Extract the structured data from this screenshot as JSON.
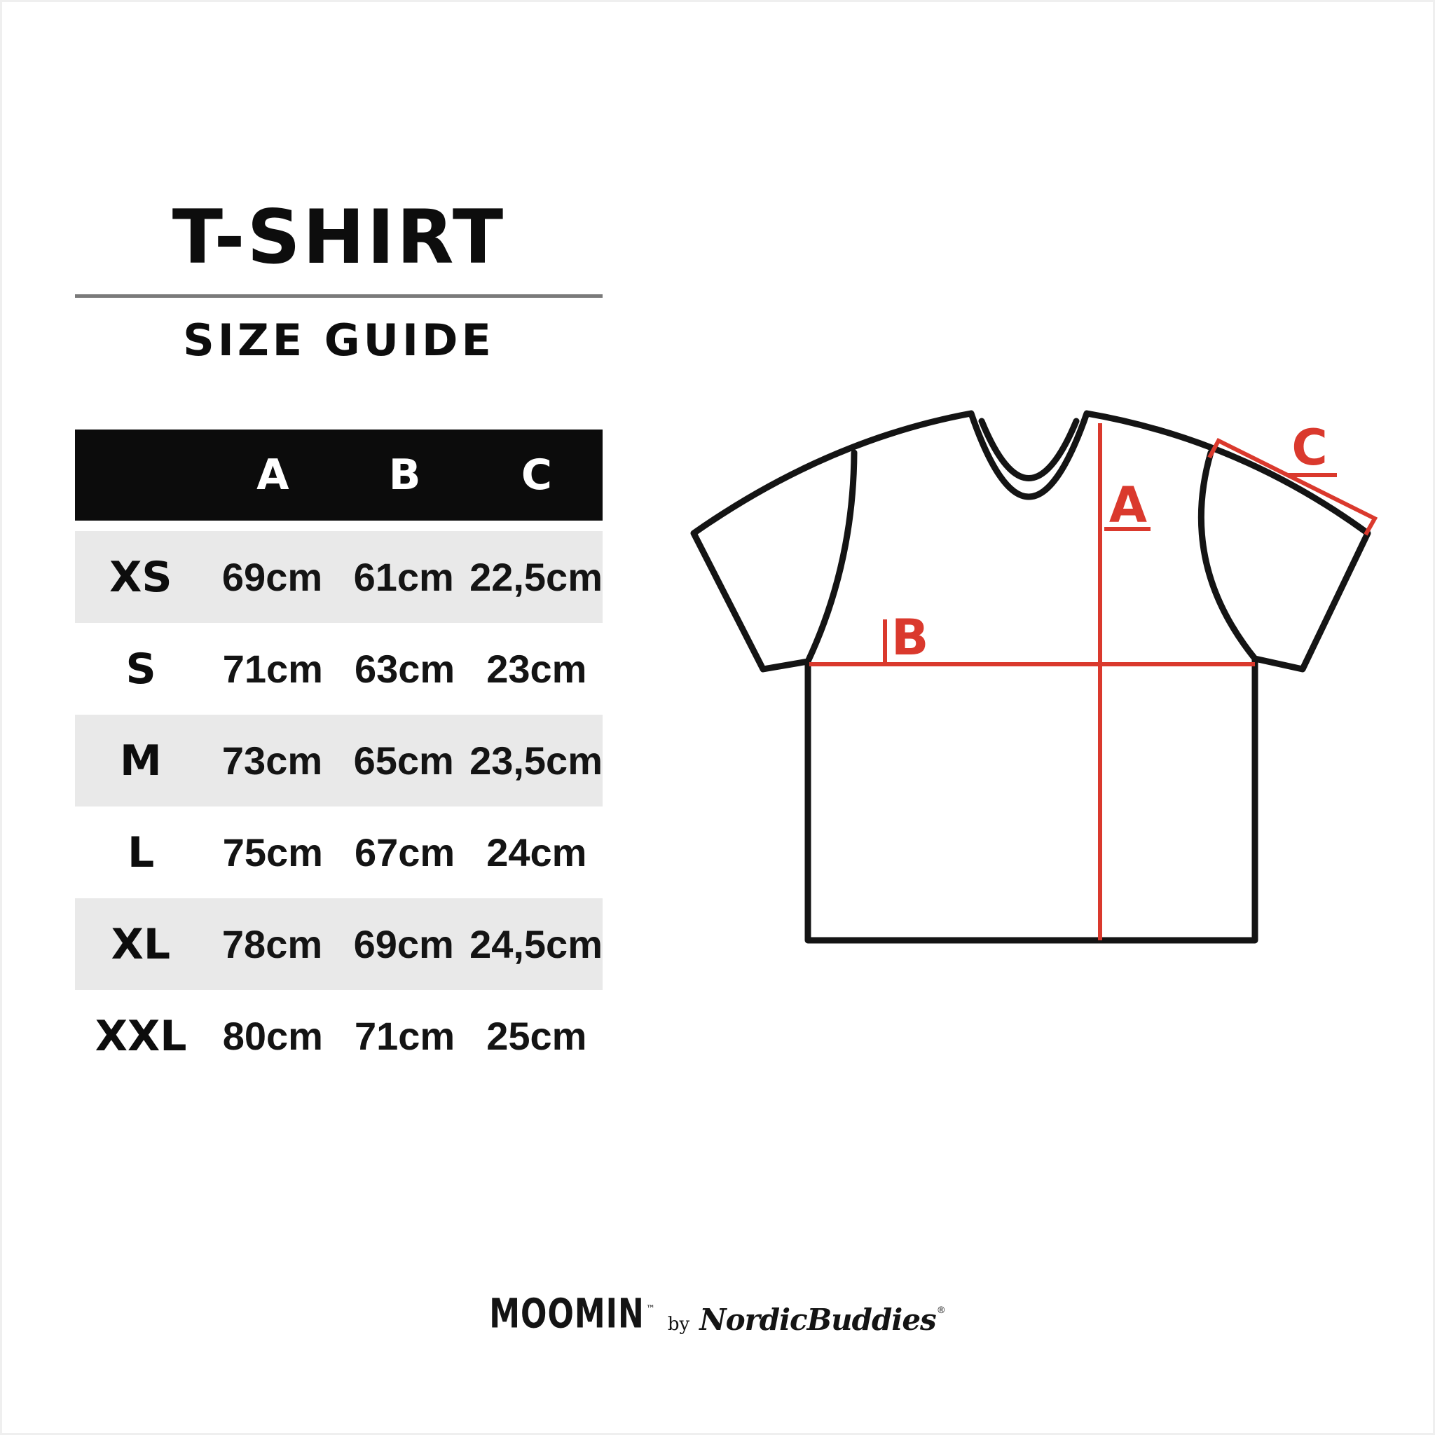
{
  "title": {
    "line1": "T-SHIRT",
    "line2": "SIZE GUIDE"
  },
  "table": {
    "columns": [
      "A",
      "B",
      "C"
    ],
    "rows": [
      {
        "size": "XS",
        "a": "69cm",
        "b": "61cm",
        "c": "22,5cm"
      },
      {
        "size": "S",
        "a": "71cm",
        "b": "63cm",
        "c": "23cm"
      },
      {
        "size": "M",
        "a": "73cm",
        "b": "65cm",
        "c": "23,5cm"
      },
      {
        "size": "L",
        "a": "75cm",
        "b": "67cm",
        "c": "24cm"
      },
      {
        "size": "XL",
        "a": "78cm",
        "b": "69cm",
        "c": "24,5cm"
      },
      {
        "size": "XXL",
        "a": "80cm",
        "b": "71cm",
        "c": "25cm"
      }
    ],
    "header_bg": "#0c0c0c",
    "alt_row_bg": "#e9e9e9"
  },
  "diagram": {
    "label_a": "A",
    "label_b": "B",
    "label_c": "C",
    "accent_color": "#da392d",
    "outline_color": "#141414"
  },
  "footer": {
    "brand": "MOOMIN",
    "brand_mark": "™",
    "connector": "by",
    "partner": "NordicBuddies",
    "partner_mark": "®"
  }
}
